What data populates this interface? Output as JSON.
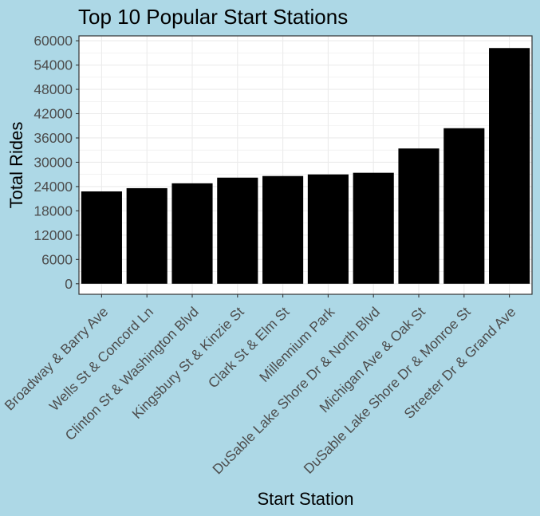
{
  "chart_data": {
    "type": "bar",
    "title": "Top 10 Popular Start Stations",
    "xlabel": "Start Station",
    "ylabel": "Total Rides",
    "categories": [
      "Broadway & Barry Ave",
      "Wells St & Concord Ln",
      "Clinton St & Washington Blvd",
      "Kingsbury St & Kinzie St",
      "Clark St & Elm St",
      "Millennium Park",
      "DuSable Lake Shore Dr & North Blvd",
      "Michigan Ave & Oak St",
      "DuSable Lake Shore Dr & Monroe St",
      "Streeter Dr & Grand Ave"
    ],
    "values": [
      22800,
      23600,
      24800,
      26200,
      26600,
      27000,
      27400,
      33400,
      38400,
      58200
    ],
    "ylim": [
      -2600,
      61200
    ],
    "yticks": [
      0,
      6000,
      12000,
      18000,
      24000,
      30000,
      36000,
      42000,
      48000,
      54000,
      60000
    ],
    "grid": true,
    "legend": "none",
    "colors": {
      "background": "#add8e6",
      "panel": "#ffffff",
      "bar": "#000000",
      "grid": "#ebebeb",
      "panel_border": "#333333",
      "tick_label": "#4d4d4d"
    }
  }
}
